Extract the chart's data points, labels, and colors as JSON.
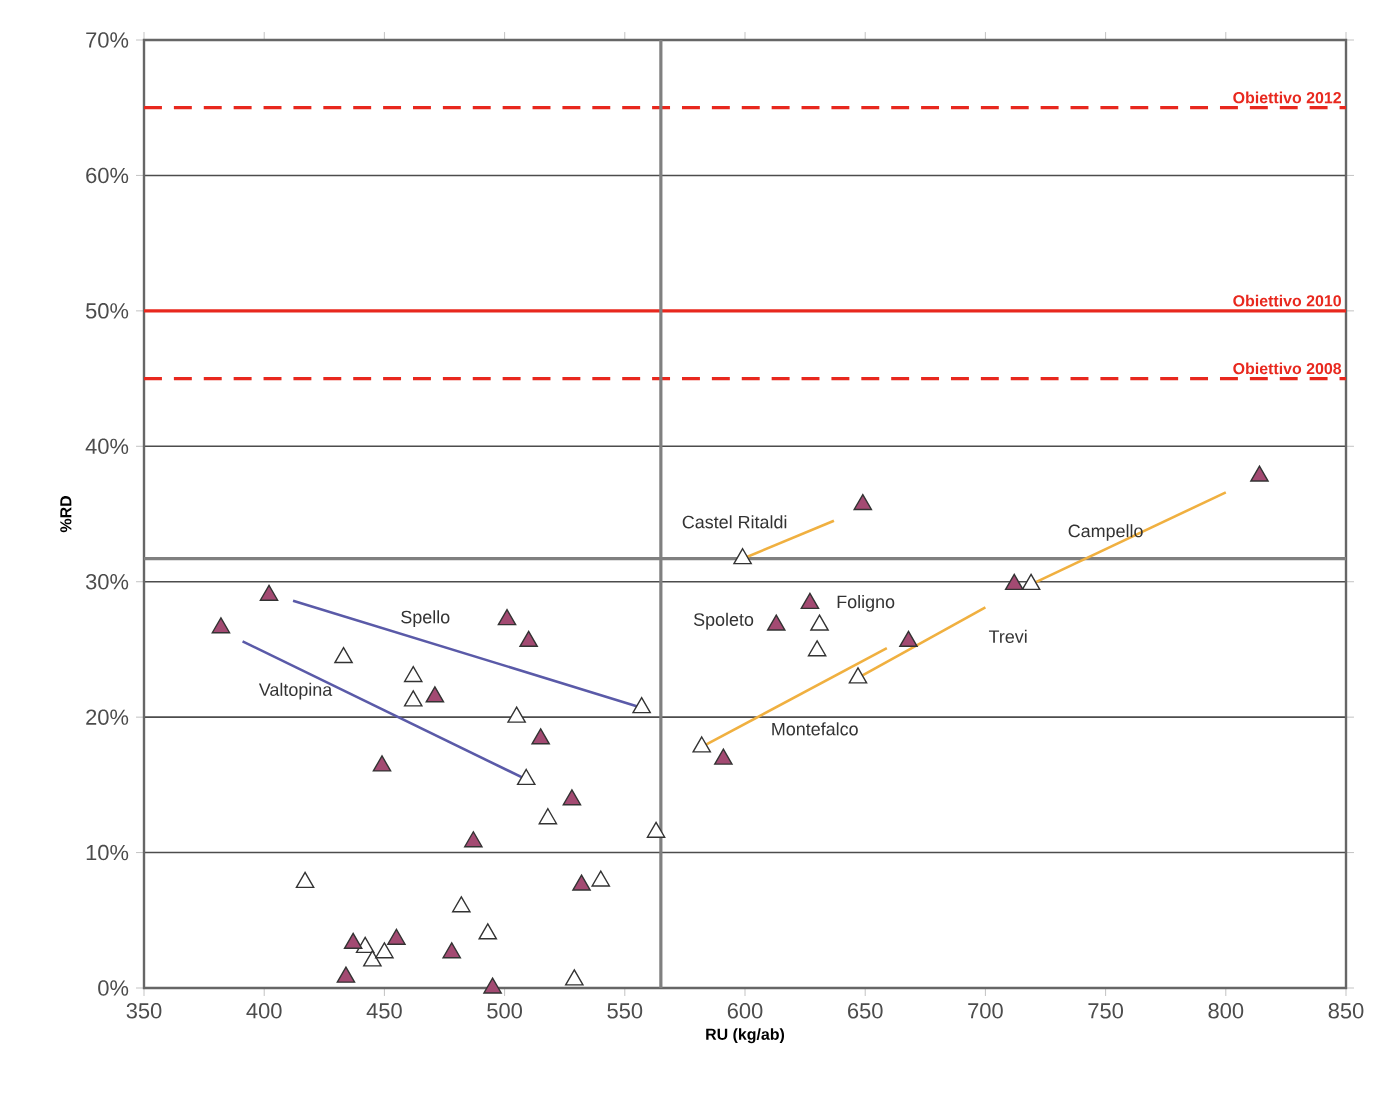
{
  "chart_data": {
    "type": "scatter",
    "xlabel": "RU (kg/ab)",
    "ylabel": "%RD",
    "xlim": [
      350,
      850
    ],
    "ylim": [
      0,
      70
    ],
    "xticks": [
      350,
      400,
      450,
      500,
      550,
      600,
      650,
      700,
      750,
      800,
      850
    ],
    "yticks": [
      {
        "value": 0,
        "label": "0%"
      },
      {
        "value": 10,
        "label": "10%"
      },
      {
        "value": 20,
        "label": "20%"
      },
      {
        "value": 30,
        "label": "30%"
      },
      {
        "value": 40,
        "label": "40%"
      },
      {
        "value": 50,
        "label": "50%"
      },
      {
        "value": 60,
        "label": "60%"
      },
      {
        "value": 70,
        "label": "70%"
      }
    ],
    "grid": "y",
    "marker": "triangle",
    "series": [
      {
        "type": "line",
        "marker": "none",
        "color": "#5a5aa8",
        "x": [
          557,
          412
        ],
        "values": [
          20.7,
          28.6
        ]
      },
      {
        "type": "line",
        "marker": "none",
        "color": "#5a5aa8",
        "x": [
          509,
          391
        ],
        "values": [
          15.4,
          25.6
        ]
      },
      {
        "type": "line",
        "marker": "none",
        "color": "#f0b040",
        "x": [
          599,
          637
        ],
        "values": [
          31.7,
          34.5
        ]
      },
      {
        "type": "line",
        "marker": "none",
        "color": "#f0b040",
        "x": [
          582,
          659
        ],
        "values": [
          17.8,
          25.1
        ]
      },
      {
        "type": "line",
        "marker": "none",
        "color": "#f0b040",
        "x": [
          647,
          700
        ],
        "values": [
          22.9,
          28.1
        ]
      },
      {
        "type": "line",
        "marker": "none",
        "color": "#f0b040",
        "x": [
          719,
          800
        ],
        "values": [
          29.8,
          36.6
        ]
      },
      {
        "color": "#ffffff",
        "x": [
          557,
          433,
          462,
          462,
          505,
          509,
          518,
          563,
          417,
          540,
          482,
          493,
          442,
          445,
          450,
          529,
          599,
          582,
          719,
          631,
          630,
          647
        ],
        "values": [
          20.7,
          24.4,
          23.0,
          21.2,
          20.0,
          15.4,
          12.5,
          11.5,
          7.8,
          7.9,
          6.0,
          4.0,
          3.0,
          2.0,
          2.6,
          0.6,
          31.7,
          17.8,
          29.8,
          26.8,
          24.9,
          22.9
        ]
      },
      {
        "color": "#a34a72",
        "x": [
          402,
          382,
          501,
          510,
          471,
          515,
          449,
          528,
          487,
          532,
          437,
          455,
          478,
          434,
          495,
          649,
          814,
          712,
          627,
          613,
          668,
          591
        ],
        "values": [
          29.0,
          26.6,
          27.2,
          25.6,
          21.5,
          18.4,
          16.4,
          13.9,
          10.8,
          7.6,
          3.3,
          3.6,
          2.6,
          0.8,
          0,
          35.7,
          37.8,
          29.8,
          28.4,
          26.8,
          25.6,
          16.9
        ]
      }
    ],
    "ref_lines": [
      {
        "axis": "y",
        "value": 65,
        "label": "Obiettivo 2012",
        "color": "#e8281e",
        "line_style": "dashed"
      },
      {
        "axis": "y",
        "value": 50,
        "label": "Obiettivo 2010",
        "color": "#e8281e",
        "line_style": "solid"
      },
      {
        "axis": "y",
        "value": 45,
        "label": "Obiettivo 2008",
        "color": "#e8281e",
        "line_style": "dashed"
      },
      {
        "axis": "y",
        "value": 31.7,
        "color": "#808080",
        "line_style": "solid"
      },
      {
        "axis": "x",
        "value": 565,
        "color": "#808080",
        "line_style": "solid"
      }
    ],
    "annotations": [
      {
        "text": "Castel Ritaldi",
        "x": 599,
        "y": 31.7
      },
      {
        "text": "Campello",
        "x": 750,
        "y": 32.4
      },
      {
        "text": "Spoleto",
        "x": 613,
        "y": 26.8
      },
      {
        "text": "Foligno",
        "x": 627,
        "y": 28.4
      },
      {
        "text": "Trevi",
        "x": 697,
        "y": 27.8
      },
      {
        "text": "Montefalco",
        "x": 629,
        "y": 22.3
      },
      {
        "text": "Spello",
        "x": 467,
        "y": 25.6
      },
      {
        "text": "Valtopina",
        "x": 418,
        "y": 23.3
      }
    ]
  }
}
